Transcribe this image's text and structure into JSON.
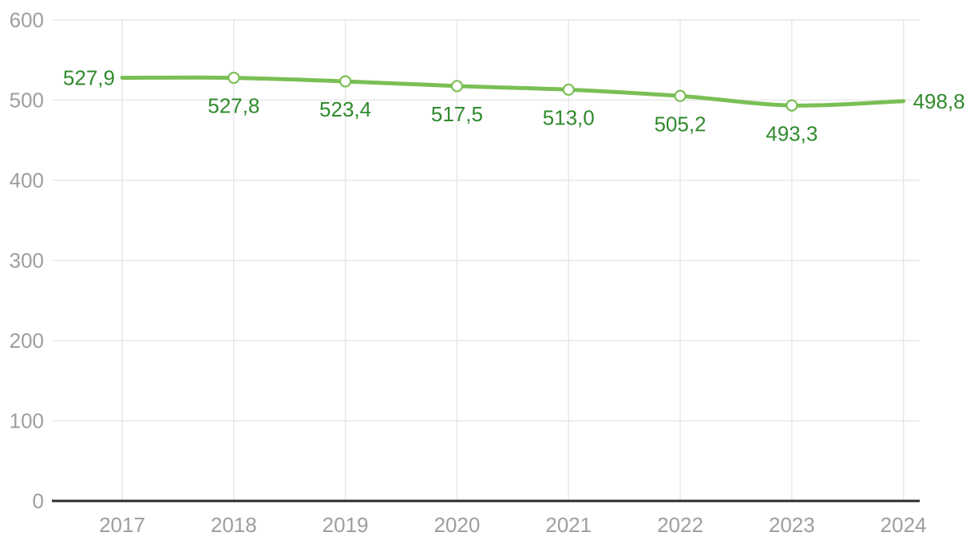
{
  "chart_data": {
    "type": "line",
    "title": "",
    "xlabel": "",
    "ylabel": "",
    "categories": [
      "2017",
      "2018",
      "2019",
      "2020",
      "2021",
      "2022",
      "2023",
      "2024"
    ],
    "series": [
      {
        "name": "series-1",
        "values": [
          527.9,
          527.8,
          523.4,
          517.5,
          513.0,
          505.2,
          493.3,
          498.8
        ]
      }
    ],
    "data_labels": [
      "527,9",
      "527,8",
      "523,4",
      "517,5",
      "513,0",
      "505,2",
      "493,3",
      "498,8"
    ],
    "label_placement": [
      "left",
      "below",
      "below",
      "below",
      "below",
      "below",
      "below",
      "right"
    ],
    "decimal_separator": ",",
    "ylim": [
      0,
      600
    ],
    "y_ticks": [
      0,
      100,
      200,
      300,
      400,
      500,
      600
    ],
    "y_tick_labels": [
      "0",
      "100",
      "200",
      "300",
      "400",
      "500",
      "600"
    ],
    "grid": true,
    "legend_position": "none",
    "marker": "hollow-circle",
    "markers_on_endpoints": false,
    "colors": {
      "line": "#7abf55",
      "marker_fill": "#ffffff",
      "data_label": "#308a2c",
      "grid": "#e7e7e7",
      "axis_line": "#2d2d2d",
      "tick_label": "#9e9e9e",
      "background": "#ffffff"
    }
  }
}
